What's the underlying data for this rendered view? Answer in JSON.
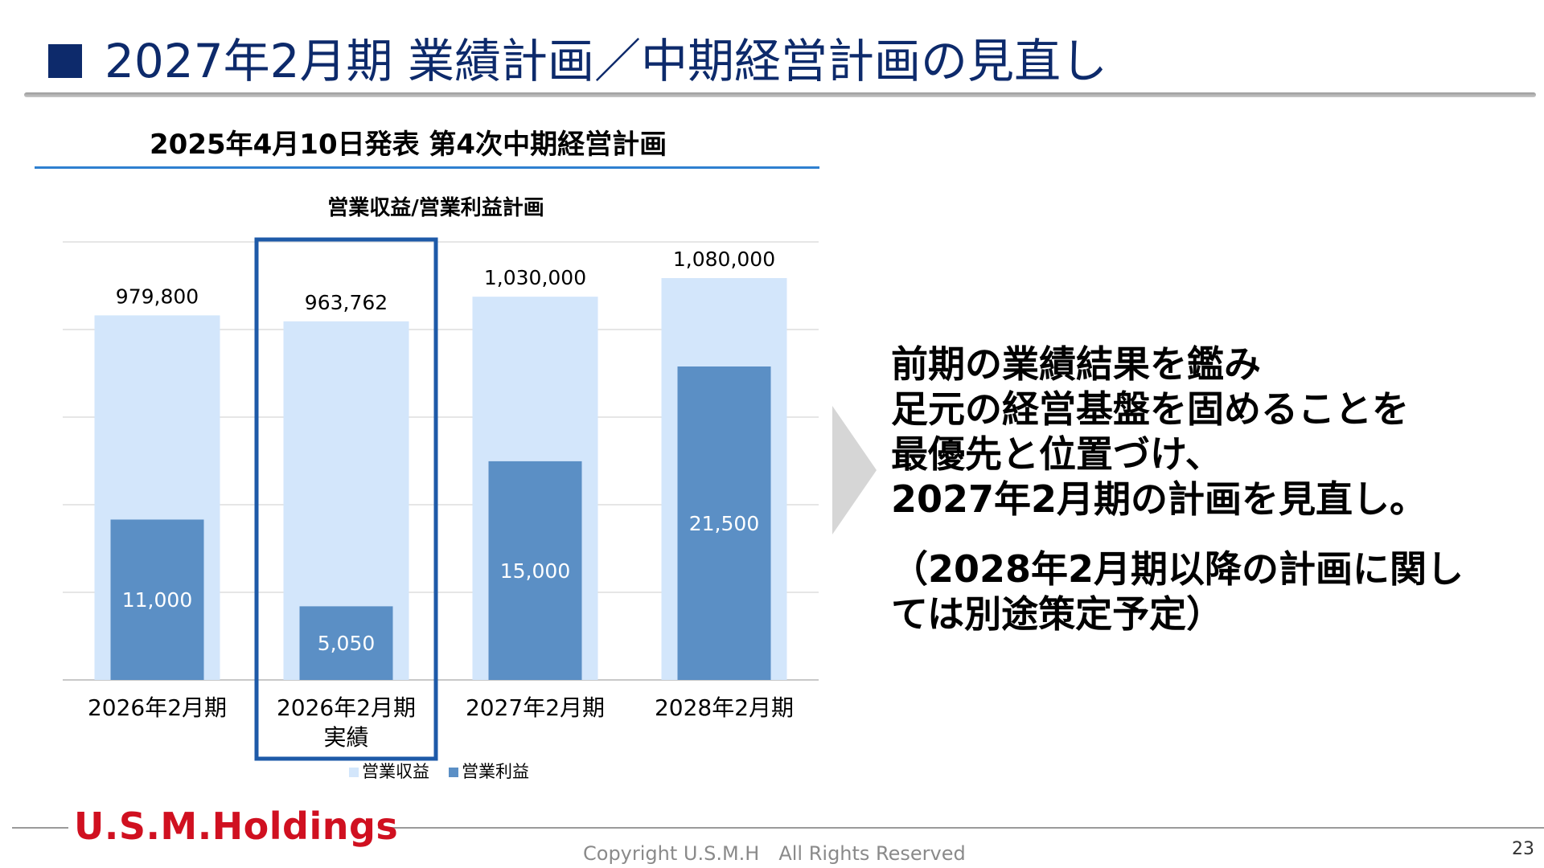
{
  "header": {
    "title": "2027年2月期 業績計画／中期経営計画の見直し"
  },
  "section": {
    "subhead": "2025年4月10日発表 第4次中期経営計画"
  },
  "chart_data": {
    "type": "bar",
    "title": "営業収益/営業利益計画",
    "categories": [
      [
        "2026年2月期"
      ],
      [
        "2026年2月期",
        "実績"
      ],
      [
        "2027年2月期"
      ],
      [
        "2028年2月期"
      ]
    ],
    "series": [
      {
        "name": "営業収益",
        "values": [
          979800,
          963762,
          1030000,
          1080000
        ],
        "labels": [
          "979,800",
          "963,762",
          "1,030,000",
          "1,080,000"
        ],
        "color": "#d3e6fb"
      },
      {
        "name": "営業利益",
        "values": [
          11000,
          5050,
          15000,
          21500
        ],
        "labels": [
          "11,000",
          "5,050",
          "15,000",
          "21,500"
        ],
        "color": "#5b8fc5"
      }
    ],
    "highlight_category_index": 1,
    "highlight_color": "#1e5aa8",
    "grid": true,
    "legend": "bottom"
  },
  "message": {
    "lines": [
      "前期の業績結果を鑑み",
      "足元の経営基盤を固めることを",
      "最優先と位置づけ、",
      "2027年2月期の計画を見直し。"
    ],
    "note_lines": [
      "（2028年2月期以降の計画に関し",
      "ては別途策定予定）"
    ]
  },
  "footer": {
    "logo": "U.S.M.Holdings",
    "copyright": "Copyright U.S.M.H　All Rights Reserved",
    "page": "23"
  },
  "colors": {
    "title": "#0d2a6b",
    "accent_rule": "#2f80d0",
    "logo": "#d01020"
  }
}
